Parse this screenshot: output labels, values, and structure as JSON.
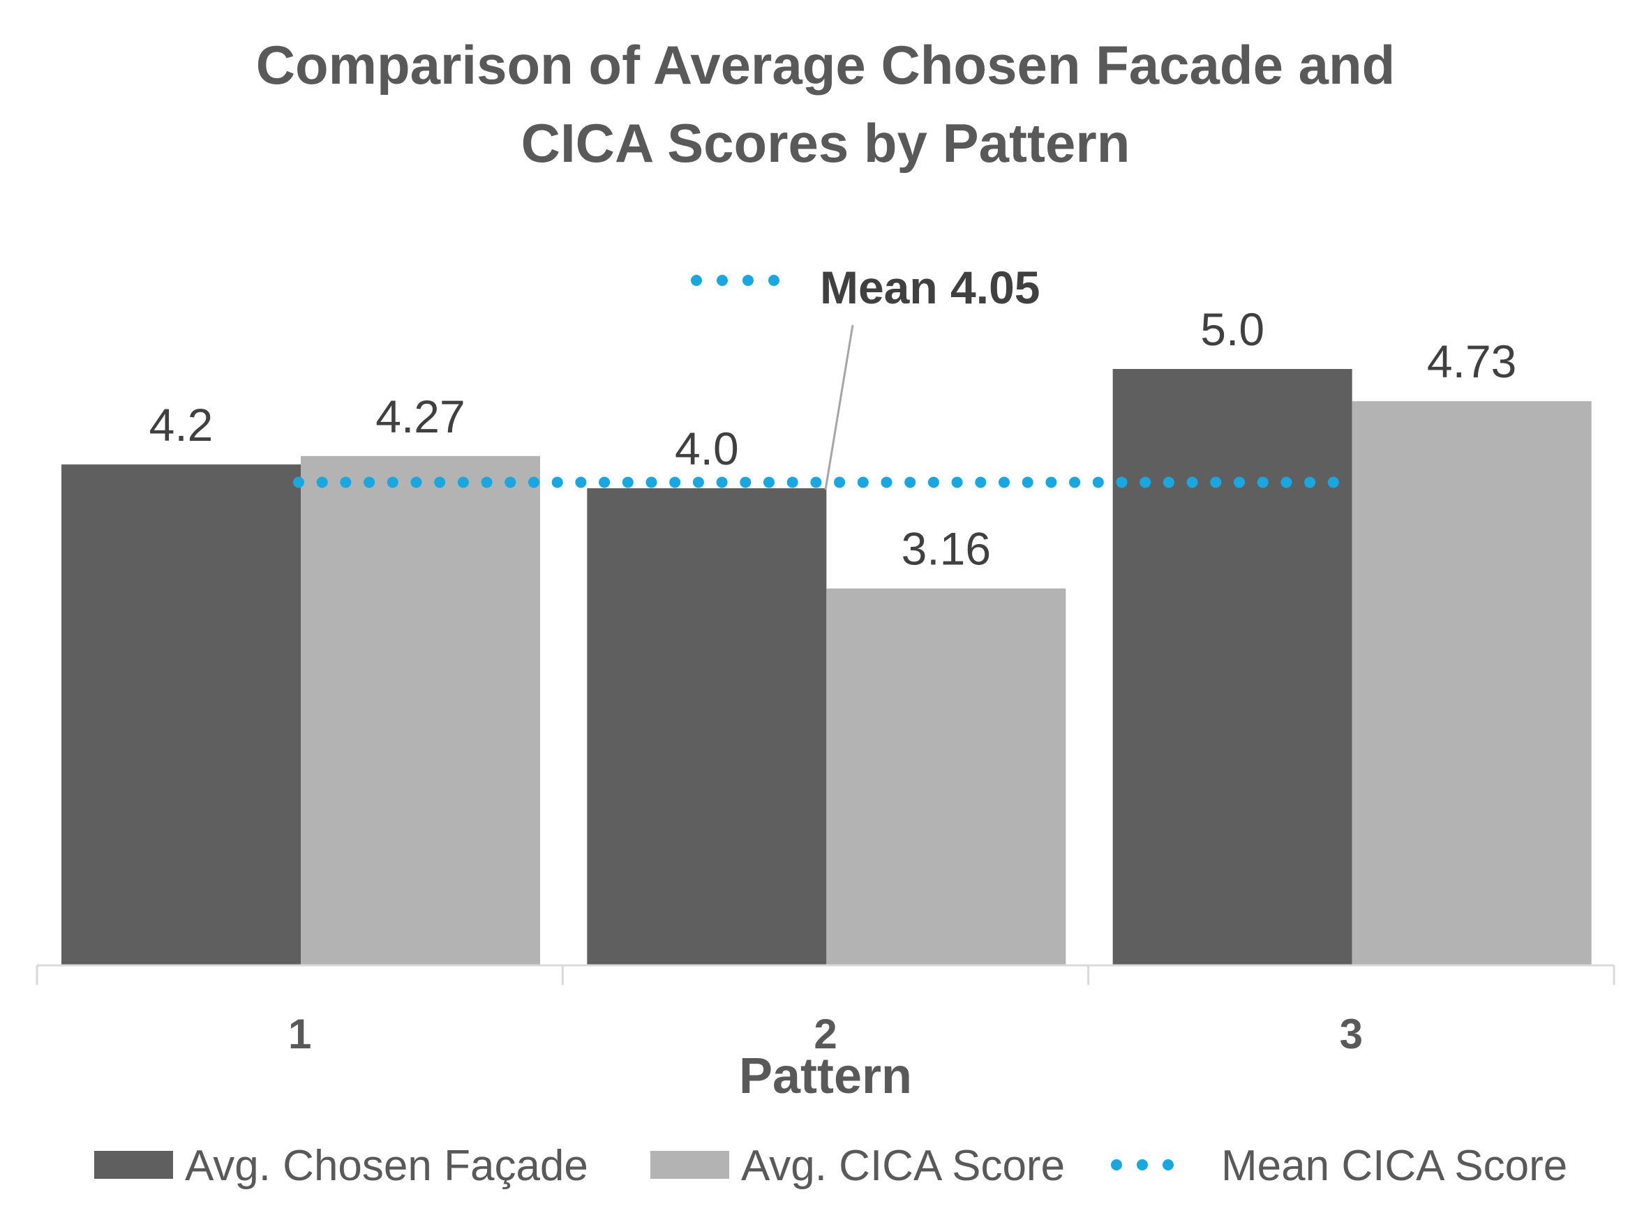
{
  "chart_data": {
    "type": "bar",
    "title_lines": [
      "Comparison of Average Chosen Facade and",
      "CICA Scores by Pattern"
    ],
    "xlabel": "Pattern",
    "ylabel": "",
    "categories": [
      "1",
      "2",
      "3"
    ],
    "ylim": [
      0,
      5.5
    ],
    "grid": false,
    "series": [
      {
        "name": "Avg. Chosen Façade",
        "values": [
          4.2,
          4.0,
          5.0
        ],
        "labels": [
          "4.2",
          "4.0",
          "5.0"
        ],
        "color": "#5f5f5f"
      },
      {
        "name": "Avg. CICA Score",
        "values": [
          4.27,
          3.16,
          4.73
        ],
        "labels": [
          "4.27",
          "3.16",
          "4.73"
        ],
        "color": "#b3b3b3"
      }
    ],
    "reference_line": {
      "name": "Mean CICA Score",
      "value": 4.05,
      "label": "Mean 4.05",
      "color": "#1aa7e0",
      "style": "dotted"
    },
    "legend": {
      "position": "bottom"
    }
  }
}
